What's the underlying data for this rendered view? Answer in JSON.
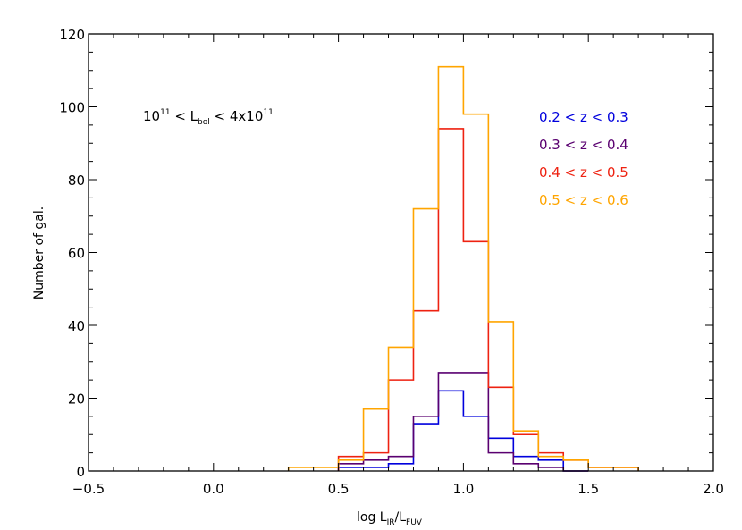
{
  "chart_data": {
    "type": "step-histogram",
    "title": "",
    "xlabel": {
      "main": "log L",
      "sub1": "IR",
      "slash": "/L",
      "sub2": "FUV"
    },
    "ylabel": "Number of gal.",
    "xlim": [
      -0.5,
      2.0
    ],
    "ylim": [
      0,
      120
    ],
    "xticks": [
      -0.5,
      0.0,
      0.5,
      1.0,
      1.5,
      2.0
    ],
    "xtick_labels": [
      "−0.5",
      "0.0",
      "0.5",
      "1.0",
      "1.5",
      "2.0"
    ],
    "yticks": [
      0,
      20,
      40,
      60,
      80,
      100,
      120
    ],
    "ytick_labels": [
      "0",
      "20",
      "40",
      "60",
      "80",
      "100",
      "120"
    ],
    "annotation": {
      "a": "10",
      "a_sup": "11",
      "b": " < L",
      "b_sub": "bol",
      "c": " < 4x10",
      "c_sup": "11"
    },
    "legend_position": "top-right",
    "bin_width": 0.1,
    "series": [
      {
        "name": "0.2 < z < 0.3",
        "color": "#0000dd",
        "bins": [
          0.5,
          0.6,
          0.7,
          0.8,
          0.9,
          1.0,
          1.1,
          1.2,
          1.3,
          1.4
        ],
        "values": [
          1,
          1,
          2,
          13,
          22,
          15,
          9,
          4,
          3,
          0
        ]
      },
      {
        "name": "0.3 < z < 0.4",
        "color": "#5a0070",
        "bins": [
          0.5,
          0.6,
          0.7,
          0.8,
          0.9,
          1.0,
          1.1,
          1.2,
          1.3,
          1.4
        ],
        "values": [
          2,
          3,
          4,
          15,
          27,
          27,
          5,
          2,
          1,
          0
        ]
      },
      {
        "name": "0.4 < z < 0.5",
        "color": "#ee2211",
        "bins": [
          0.5,
          0.6,
          0.7,
          0.8,
          0.9,
          1.0,
          1.1,
          1.2,
          1.3,
          1.4,
          1.5,
          1.6
        ],
        "values": [
          4,
          5,
          25,
          44,
          94,
          63,
          23,
          10,
          5,
          3,
          1,
          1
        ]
      },
      {
        "name": "0.5 < z < 0.6",
        "color": "#ffa500",
        "bins": [
          0.3,
          0.4,
          0.5,
          0.6,
          0.7,
          0.8,
          0.9,
          1.0,
          1.1,
          1.2,
          1.3,
          1.4,
          1.5,
          1.6
        ],
        "values": [
          1,
          1,
          3,
          17,
          34,
          72,
          111,
          98,
          41,
          11,
          4,
          3,
          1,
          1
        ]
      }
    ]
  }
}
